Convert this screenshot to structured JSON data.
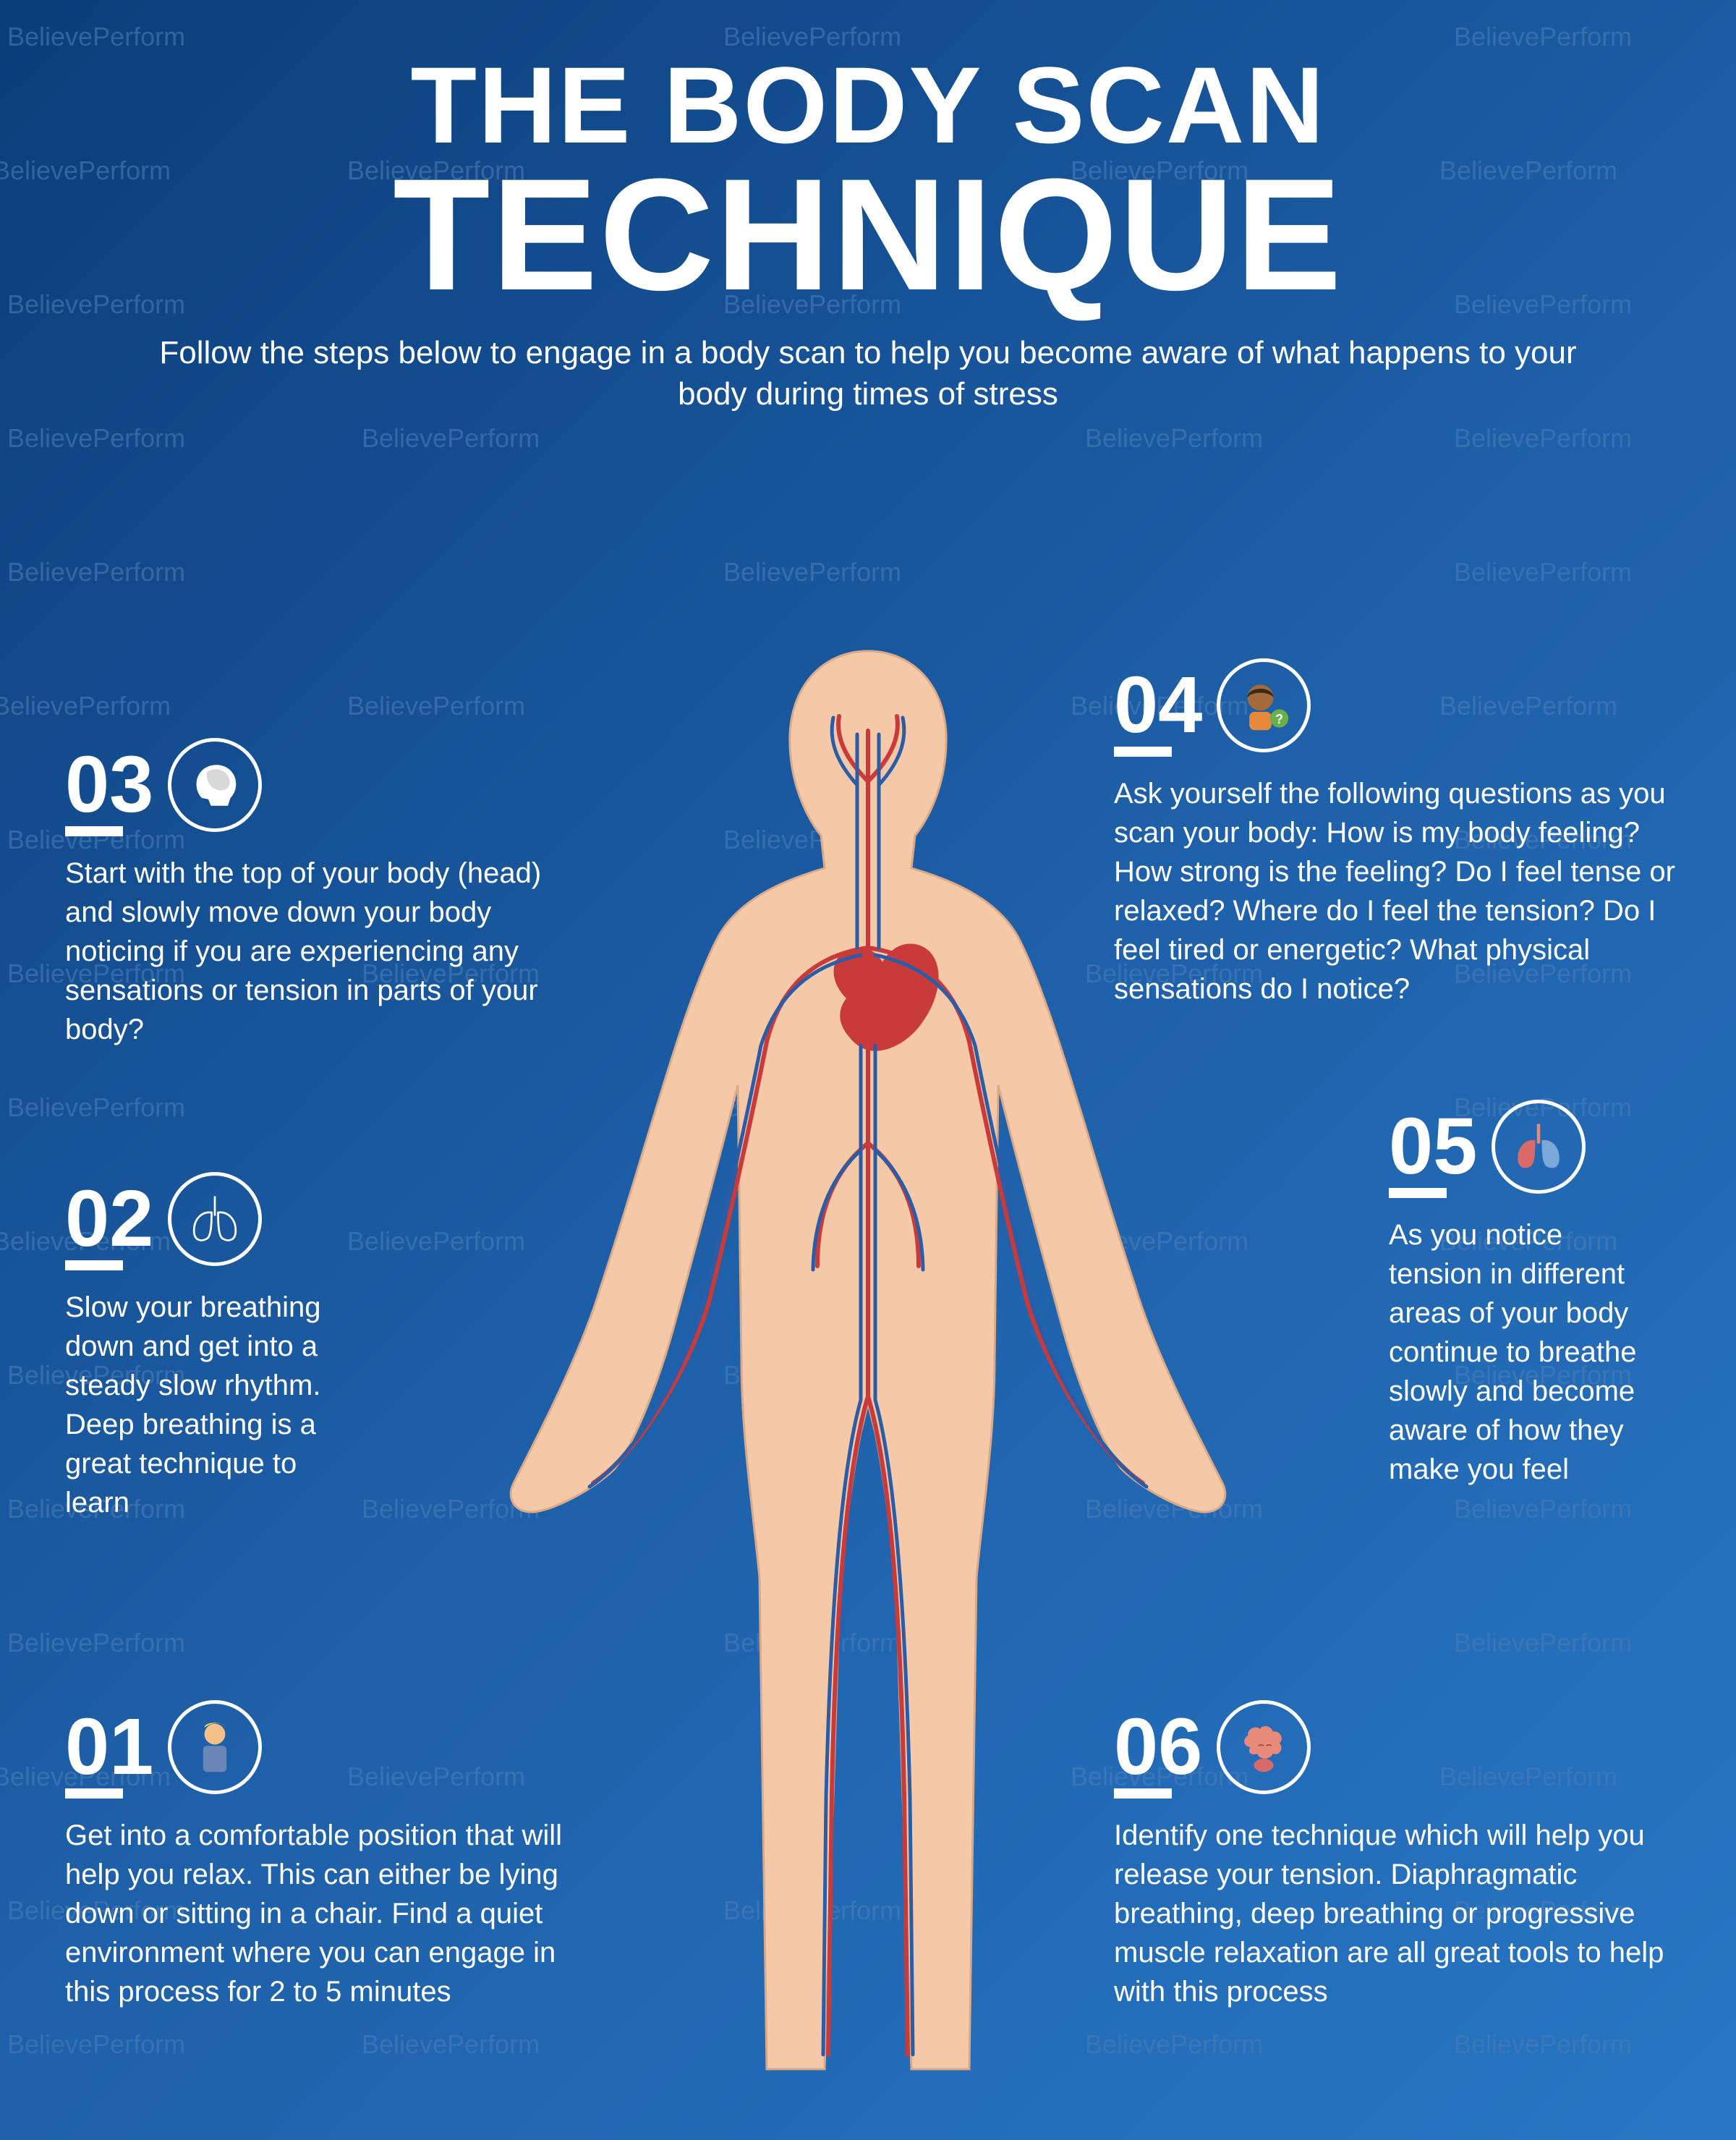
{
  "watermark_text": "BelievePerform",
  "title": {
    "line1": "THE BODY SCAN",
    "line2": "TECHNIQUE"
  },
  "subtitle": "Follow the steps below to engage in a body scan to help you become aware of what happens to your body during times of stress",
  "steps": {
    "s01": {
      "num": "01",
      "text": "Get into a comfortable position that will help you relax. This can either be lying down or sitting in a chair. Find a quiet environment where you can engage in this process for 2 to 5 minutes"
    },
    "s02": {
      "num": "02",
      "text": "Slow your breathing down and get into a steady slow rhythm. Deep breathing is a great technique to learn"
    },
    "s03": {
      "num": "03",
      "text": "Start with the top of your body (head) and slowly move down your body noticing if you are experiencing any sensations or tension in parts of your body?"
    },
    "s04": {
      "num": "04",
      "text": "Ask yourself the following questions as you scan your body: How is my body feeling? How strong is the feeling? Do I feel tense or relaxed? Where do I feel the tension? Do I feel tired or energetic? What physical sensations do I notice?"
    },
    "s05": {
      "num": "05",
      "text": "As you notice tension in different areas of your body continue to breathe slowly and become aware of how they make you feel"
    },
    "s06": {
      "num": "06",
      "text": "Identify one technique which will help you release your tension. Diaphragmatic breathing, deep breathing or progressive muscle relaxation are all great tools to help with this process"
    }
  },
  "colors": {
    "skin": "#f5c9a8",
    "artery": "#c93a3a",
    "vein": "#2a5da8",
    "heart": "#c93a3a",
    "watermark": "#4a7db5",
    "icon_lungs": "#ffffff",
    "icon_brain": "#d8d8d8",
    "icon_person": "#f4c08a",
    "icon_brain_pink": "#e88a7a",
    "icon_face_skin": "#a46a3a"
  }
}
